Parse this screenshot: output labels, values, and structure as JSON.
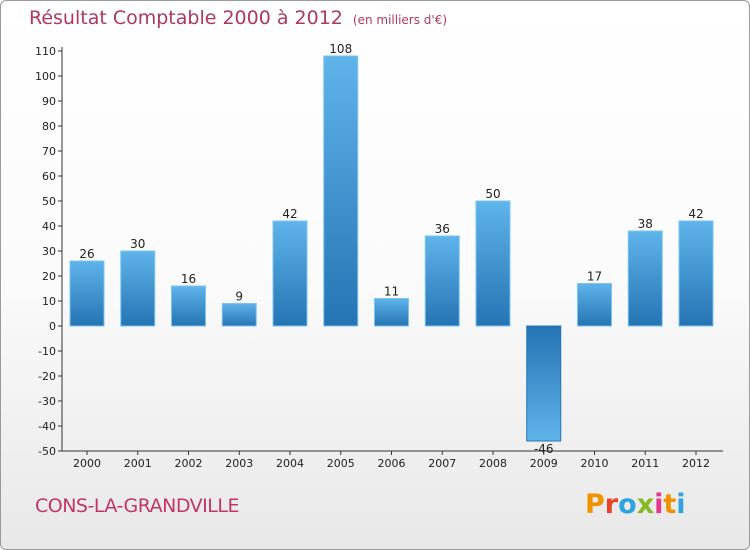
{
  "header": {
    "title": "Résultat Comptable 2000 à 2012",
    "unit": "(en milliers d'€)"
  },
  "footer": {
    "city": "CONS-LA-GRANDVILLE",
    "logo_letters": [
      "P",
      "r",
      "o",
      "x",
      "i",
      "t",
      "i"
    ]
  },
  "colors": {
    "bar_light": "#5fb4ea",
    "bar_dark": "#2574b4",
    "title": "#b0385d",
    "city": "#c2356a"
  },
  "chart_data": {
    "type": "bar",
    "title": "Résultat Comptable 2000 à 2012",
    "ylabel": "(en milliers d'€)",
    "xlabel": "",
    "categories": [
      "2000",
      "2001",
      "2002",
      "2003",
      "2004",
      "2005",
      "2006",
      "2007",
      "2008",
      "2009",
      "2010",
      "2011",
      "2012"
    ],
    "values": [
      26,
      30,
      16,
      9,
      42,
      108,
      11,
      36,
      50,
      -46,
      17,
      38,
      42
    ],
    "ylim": [
      -50,
      110
    ],
    "yticks": [
      110,
      100,
      90,
      80,
      70,
      60,
      50,
      40,
      30,
      20,
      10,
      0,
      -10,
      -20,
      -30,
      -40,
      -50
    ],
    "grid": false,
    "legend": "none"
  }
}
